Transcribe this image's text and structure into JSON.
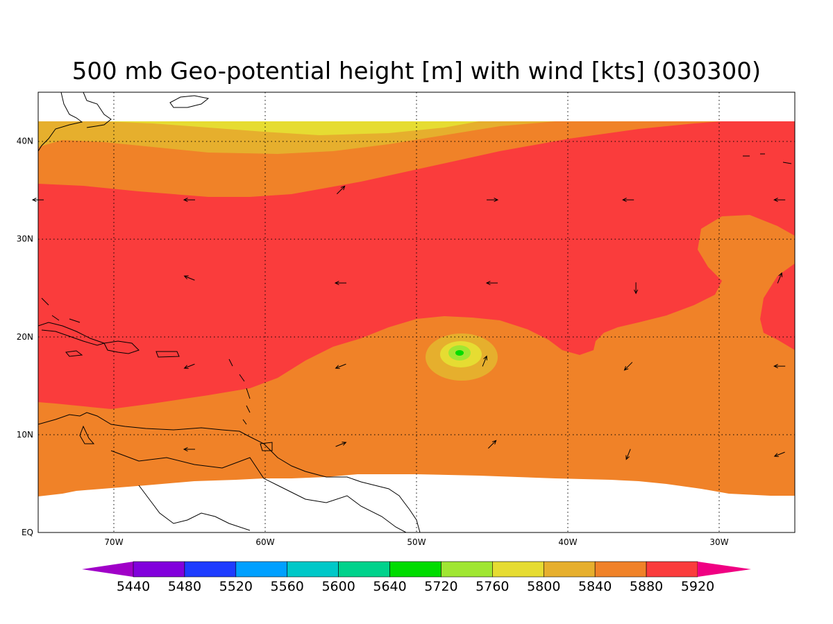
{
  "title": "500 mb Geo-potential height [m] with wind [kts] (030300)",
  "map": {
    "lon_range": [
      -75,
      -25
    ],
    "lat_range": [
      0,
      45
    ],
    "lon_ticks": [
      {
        "value": -70,
        "label": "70W"
      },
      {
        "value": -60,
        "label": "60W"
      },
      {
        "value": -50,
        "label": "50W"
      },
      {
        "value": -40,
        "label": "40W"
      },
      {
        "value": -30,
        "label": "30W"
      }
    ],
    "lat_ticks": [
      {
        "value": 0,
        "label": "EQ"
      },
      {
        "value": 10,
        "label": "10N"
      },
      {
        "value": 20,
        "label": "20N"
      },
      {
        "value": 30,
        "label": "30N"
      },
      {
        "value": 40,
        "label": "40N"
      }
    ],
    "grid": true
  },
  "colorbar": {
    "labels": [
      "5440",
      "5480",
      "5520",
      "5560",
      "5600",
      "5640",
      "5720",
      "5760",
      "5800",
      "5840",
      "5880",
      "5920"
    ],
    "colors": [
      "#a000c8",
      "#8200dc",
      "#1e3cff",
      "#00a0ff",
      "#00c8c8",
      "#00d28c",
      "#00dc00",
      "#a0e632",
      "#e6dc32",
      "#e6af2d",
      "#f08228",
      "#fa3c3c",
      "#f00082"
    ]
  },
  "field_colors": {
    "5760": "#e6dc32",
    "5800": "#e6af2d",
    "5840": "#f08228",
    "5880": "#fa3c3c",
    "5720": "#a0e632",
    "5640": "#00dc00"
  },
  "chart_data": {
    "type": "heatmap",
    "title": "500 mb Geo-potential height [m] with wind [kts] (030300)",
    "xlabel": "",
    "ylabel": "",
    "xlim": [
      -75,
      -25
    ],
    "ylim": [
      0,
      45
    ],
    "contour_levels": [
      5440,
      5480,
      5520,
      5560,
      5600,
      5640,
      5720,
      5760,
      5800,
      5840,
      5880,
      5920
    ],
    "grid": true,
    "wind_vectors": [
      {
        "lon": -75,
        "lat": 34,
        "dir": "W"
      },
      {
        "lon": -65,
        "lat": 34,
        "dir": "W"
      },
      {
        "lon": -55,
        "lat": 35,
        "dir": "NE"
      },
      {
        "lon": -45,
        "lat": 34,
        "dir": "E"
      },
      {
        "lon": -36,
        "lat": 34,
        "dir": "W"
      },
      {
        "lon": -26,
        "lat": 34,
        "dir": "W"
      },
      {
        "lon": -65,
        "lat": 26,
        "dir": "WNW"
      },
      {
        "lon": -55,
        "lat": 25.5,
        "dir": "W"
      },
      {
        "lon": -45,
        "lat": 25.5,
        "dir": "W"
      },
      {
        "lon": -35.5,
        "lat": 25,
        "dir": "S"
      },
      {
        "lon": -26,
        "lat": 26,
        "dir": "NNE"
      },
      {
        "lon": -65,
        "lat": 17,
        "dir": "WSW"
      },
      {
        "lon": -55,
        "lat": 17,
        "dir": "WSW"
      },
      {
        "lon": -45.5,
        "lat": 17.5,
        "dir": "NNE"
      },
      {
        "lon": -36,
        "lat": 17,
        "dir": "SW"
      },
      {
        "lon": -26,
        "lat": 17,
        "dir": "W"
      },
      {
        "lon": -65,
        "lat": 8.5,
        "dir": "W"
      },
      {
        "lon": -55,
        "lat": 9,
        "dir": "ENE"
      },
      {
        "lon": -45,
        "lat": 9,
        "dir": "NE"
      },
      {
        "lon": -36,
        "lat": 8,
        "dir": "SSW"
      },
      {
        "lon": -26,
        "lat": 8,
        "dir": "WSW"
      }
    ]
  }
}
